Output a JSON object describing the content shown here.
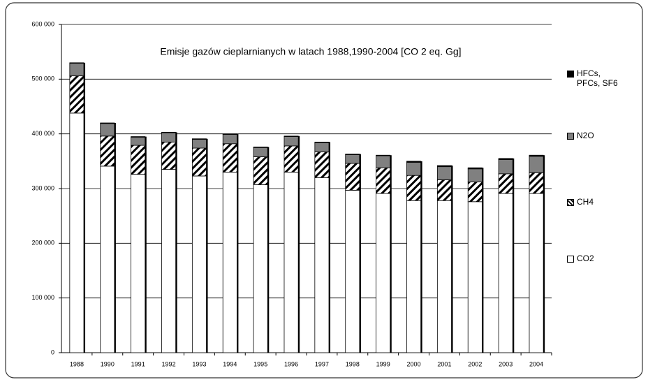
{
  "chart_data": {
    "type": "stacked_bar",
    "title": "Emisje gazów cieplarnianych w latach 1988,1990-2004 [CO 2 eq. Gg]",
    "categories": [
      "1988",
      "1990",
      "1991",
      "1992",
      "1993",
      "1994",
      "1995",
      "1996",
      "1997",
      "1998",
      "1999",
      "2000",
      "2001",
      "2002",
      "2003",
      "2004"
    ],
    "series": [
      {
        "name": "CO2",
        "color": "#ffffff",
        "values": [
          438000,
          341000,
          326000,
          335000,
          323000,
          330000,
          307000,
          330000,
          320000,
          297000,
          291000,
          278000,
          278000,
          276000,
          291000,
          291000
        ]
      },
      {
        "name": "CH4",
        "color": "#000000",
        "hatch": true,
        "values": [
          68000,
          55000,
          53000,
          50000,
          51000,
          52000,
          51000,
          48000,
          47000,
          49000,
          47000,
          46000,
          38000,
          36000,
          36000,
          38000
        ]
      },
      {
        "name": "N2O",
        "color": "#808080",
        "values": [
          23000,
          23000,
          15000,
          17000,
          16000,
          17000,
          17000,
          17000,
          17000,
          16000,
          22000,
          24000,
          24000,
          24000,
          26000,
          30000
        ]
      },
      {
        "name": "HFCs, PFCs, SF6",
        "color": "#000000",
        "values": [
          1000,
          1000,
          1000,
          1000,
          1000,
          1000,
          1000,
          1000,
          1000,
          1000,
          1000,
          2000,
          2000,
          2000,
          2000,
          2000
        ]
      }
    ],
    "ylim": [
      0,
      600000
    ],
    "yticks": [
      0,
      {
        "value": 100000,
        "label": "100 000"
      },
      {
        "value": 200000,
        "label": "200 000"
      },
      {
        "value": 300000,
        "label": "300 000"
      },
      {
        "value": 400000,
        "label": "400 000"
      },
      {
        "value": 500000,
        "label": "500 000"
      },
      {
        "value": 600000,
        "label": "600 000"
      }
    ],
    "grid": true,
    "legend": "right"
  }
}
